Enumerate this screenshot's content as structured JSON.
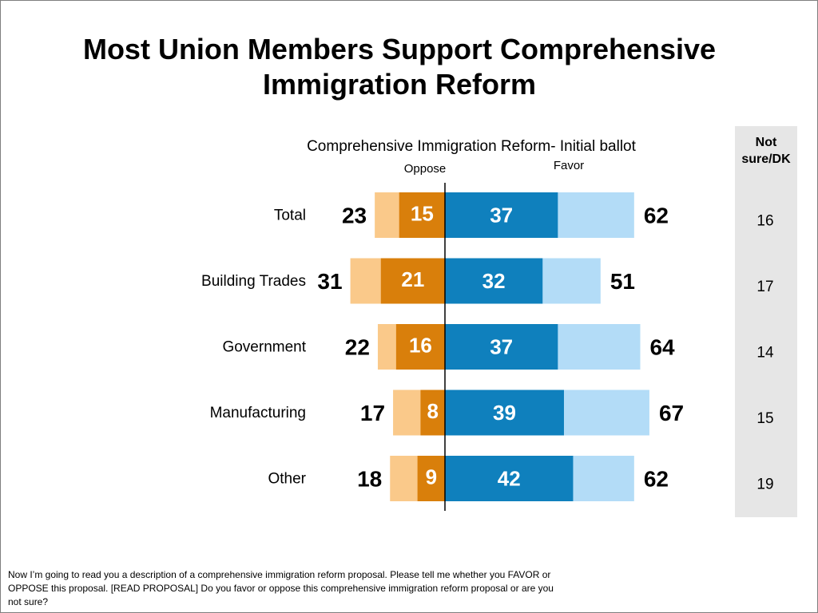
{
  "title": "Most Union Members Support Comprehensive Immigration Reform",
  "footnote": "Now I’m going to read you a description of a comprehensive immigration reform proposal. Please tell me whether you FAVOR or OPPOSE this proposal. [READ PROPOSAL] Do you favor or oppose this comprehensive immigration reform proposal or are you not sure?",
  "colors": {
    "oppose_strong": "#d97f0b",
    "oppose_total": "#fac98a",
    "favor_strong": "#0f80bd",
    "favor_total": "#b3dcf7",
    "notsure_panel": "#e6e6e6"
  },
  "chart_data": {
    "type": "bar",
    "subtitle": "Comprehensive Immigration Reform- Initial ballot",
    "oppose_label": "Oppose",
    "favor_label": "Favor",
    "notsure_header": "Not sure/DK",
    "categories": [
      "Total",
      "Building Trades",
      "Government",
      "Manufacturing",
      "Other"
    ],
    "series": [
      {
        "name": "Oppose",
        "values": [
          23,
          31,
          22,
          17,
          18
        ]
      },
      {
        "values": [
          15,
          21,
          16,
          8,
          9
        ]
      },
      {
        "values": [
          37,
          32,
          37,
          39,
          42
        ]
      },
      {
        "name": "Favor",
        "values": [
          62,
          51,
          64,
          67,
          62
        ]
      },
      {
        "name": "Not sure/DK",
        "values": [
          16,
          17,
          14,
          15,
          19
        ]
      }
    ]
  }
}
